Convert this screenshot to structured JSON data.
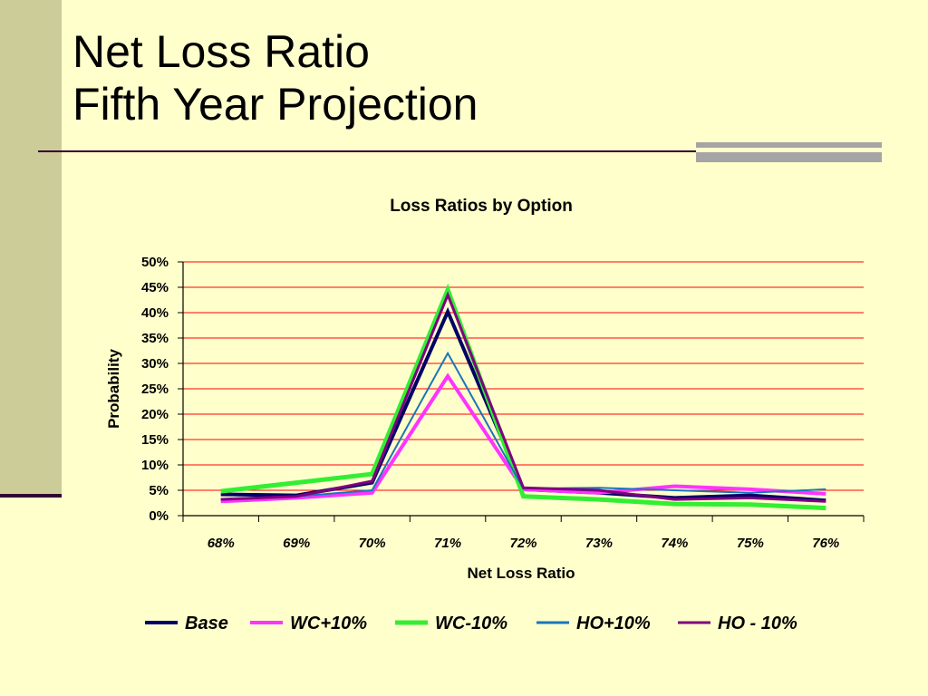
{
  "slide": {
    "title_line1": "Net Loss Ratio",
    "title_line2": "Fifth Year Projection"
  },
  "colors": {
    "background": "#ffffcc",
    "band": "#cccc99",
    "gridline": "#ff0000",
    "accent_rule": "#330033"
  },
  "chart_data": {
    "type": "line",
    "title": "Loss Ratios by Option",
    "xlabel": "Net Loss Ratio",
    "ylabel": "Probability",
    "categories": [
      "68%",
      "69%",
      "70%",
      "71%",
      "72%",
      "73%",
      "74%",
      "75%",
      "76%"
    ],
    "yticks": [
      "0%",
      "5%",
      "10%",
      "15%",
      "20%",
      "25%",
      "30%",
      "35%",
      "40%",
      "45%",
      "50%"
    ],
    "ylim": [
      0,
      50
    ],
    "grid": true,
    "legend_position": "bottom",
    "series": [
      {
        "name": "Base",
        "color": "#000066",
        "width": 4,
        "values": [
          4.2,
          4.0,
          6.5,
          40.2,
          5.2,
          4.5,
          3.5,
          4.0,
          3.0
        ]
      },
      {
        "name": "WC+10%",
        "color": "#ff33ff",
        "width": 4,
        "values": [
          2.8,
          3.5,
          4.5,
          27.5,
          5.2,
          4.5,
          5.8,
          5.2,
          4.3
        ]
      },
      {
        "name": "WC-10%",
        "color": "#33ee33",
        "width": 5,
        "values": [
          4.8,
          6.5,
          8.2,
          44.5,
          3.8,
          3.2,
          2.3,
          2.2,
          1.5
        ]
      },
      {
        "name": "HO+10%",
        "color": "#1a75bb",
        "width": 2,
        "values": [
          3.3,
          3.8,
          5.0,
          32.0,
          5.3,
          5.5,
          5.0,
          4.5,
          5.2
        ]
      },
      {
        "name": "HO - 10%",
        "color": "#800080",
        "width": 3,
        "values": [
          3.2,
          3.8,
          6.8,
          43.5,
          5.5,
          5.0,
          3.2,
          3.5,
          2.8
        ]
      }
    ]
  }
}
